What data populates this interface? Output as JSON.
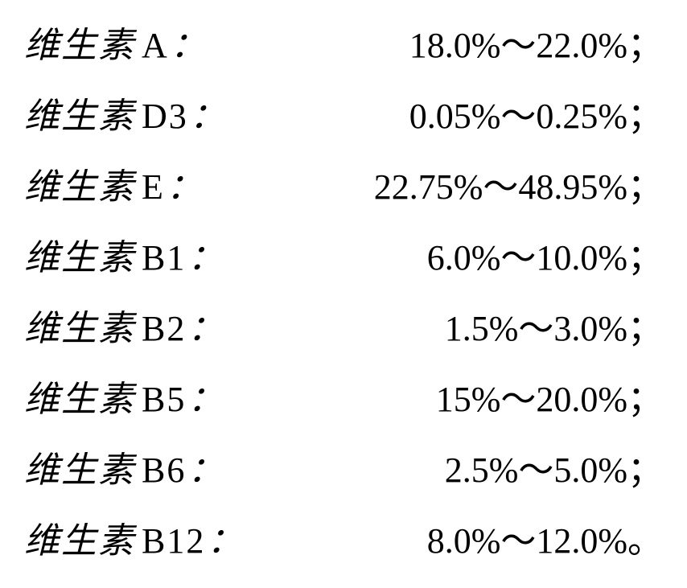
{
  "rows": [
    {
      "label_cjk": "维生素",
      "label_latin": "A",
      "value_low": "18.0%",
      "value_high": "22.0%",
      "end_punct": "；"
    },
    {
      "label_cjk": "维生素",
      "label_latin": "D3",
      "value_low": "0.05%",
      "value_high": "0.25%",
      "end_punct": "；"
    },
    {
      "label_cjk": "维生素",
      "label_latin": "E",
      "value_low": "22.75%",
      "value_high": "48.95%",
      "end_punct": "；"
    },
    {
      "label_cjk": "维生素",
      "label_latin": "B1",
      "value_low": "6.0%",
      "value_high": "10.0%",
      "end_punct": "；"
    },
    {
      "label_cjk": "维生素",
      "label_latin": "B2",
      "value_low": "1.5%",
      "value_high": "3.0%",
      "end_punct": "；"
    },
    {
      "label_cjk": "维生素",
      "label_latin": "B5",
      "value_low": "15%",
      "value_high": "20.0%",
      "end_punct": "；"
    },
    {
      "label_cjk": "维生素",
      "label_latin": "B6",
      "value_low": "2.5%",
      "value_high": "5.0%",
      "end_punct": "；"
    },
    {
      "label_cjk": "维生素",
      "label_latin": "B12",
      "value_low": "8.0%",
      "value_high": "12.0%",
      "end_punct": "。"
    }
  ],
  "styling": {
    "font_size_pt": 44,
    "text_color": "#000000",
    "background_color": "#ffffff",
    "tilde_char": "～",
    "colon_char": "：",
    "row_spacing": 32,
    "cjk_font": "KaiTi",
    "latin_font": "Times New Roman"
  }
}
